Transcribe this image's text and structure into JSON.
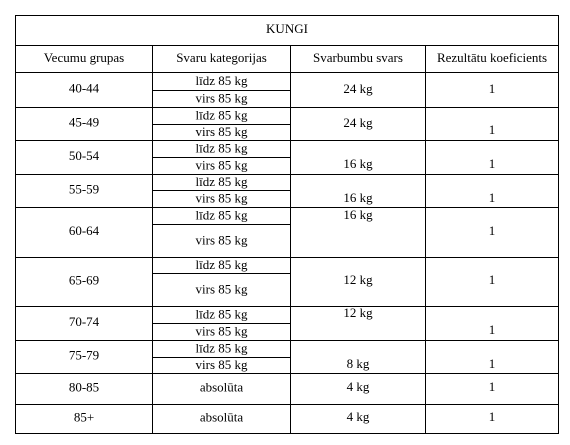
{
  "table": {
    "title": "KUNGI",
    "header": [
      "Vecumu grupas",
      "Svaru kategorijas",
      "Svarbumbu svars",
      "Rezultātu koeficients"
    ],
    "rows": [
      {
        "group": "40-44",
        "categories": [
          "līdz 85 kg",
          "virs 85 kg"
        ],
        "weight": "24 kg",
        "coefficient": "1"
      },
      {
        "group": "45-49",
        "categories": [
          "līdz 85 kg",
          "virs 85 kg"
        ],
        "weight": "24 kg",
        "coefficient": "1"
      },
      {
        "group": "50-54",
        "categories": [
          "līdz 85 kg",
          "virs 85 kg"
        ],
        "weight": "16 kg",
        "coefficient": "1"
      },
      {
        "group": "55-59",
        "categories": [
          "līdz 85 kg",
          "virs 85 kg"
        ],
        "weight": "16 kg",
        "coefficient": "1"
      },
      {
        "group": "60-64",
        "categories": [
          "līdz 85 kg",
          "virs 85 kg"
        ],
        "weight": "16 kg",
        "coefficient": "1"
      },
      {
        "group": "65-69",
        "categories": [
          "līdz 85 kg",
          "virs 85 kg"
        ],
        "weight": "12 kg",
        "coefficient": "1"
      },
      {
        "group": "70-74",
        "categories": [
          "līdz 85 kg",
          "virs 85 kg"
        ],
        "weight": "12 kg",
        "coefficient": "1"
      },
      {
        "group": "75-79",
        "categories": [
          "līdz 85 kg",
          "virs 85 kg"
        ],
        "weight": "8 kg",
        "coefficient": "1"
      },
      {
        "group": "80-85",
        "categories": [
          "absolūta"
        ],
        "weight": "4 kg",
        "coefficient": "1"
      },
      {
        "group": "85+",
        "categories": [
          "absolūta"
        ],
        "weight": "4 kg",
        "coefficient": "1"
      }
    ]
  }
}
